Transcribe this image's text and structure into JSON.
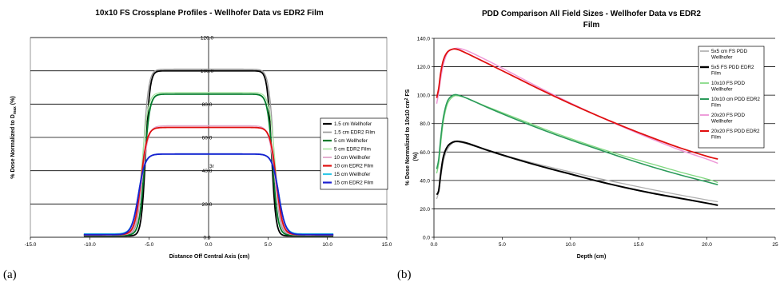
{
  "panels": [
    "(a)",
    "(b)"
  ],
  "chart_data": [
    {
      "type": "line",
      "title": "10x10 FS Crossplane Profiles - Wellhofer Data vs EDR2 Film",
      "xlabel": "Distance Off Central Axis (cm)",
      "ylabel": "% Dose Normalized to D",
      "ylabel_sub": "max",
      "ylabel_tail": " (%)",
      "xlim": [
        -15,
        15
      ],
      "ylim": [
        0,
        120
      ],
      "x_ticks": [
        "-15.0",
        "-10.0",
        "-5.0",
        "0.0",
        "5.0",
        "10.0",
        "15.0"
      ],
      "y_ticks": [
        "0.0",
        "20.0",
        "40.0",
        "60.0",
        "80.0",
        "100.0",
        "120.0"
      ],
      "y_axis_at_zero": true,
      "gridlines_y": true,
      "legend_position": "right",
      "annotation": "3r",
      "series": [
        {
          "name": "1.5 cm Wellhofer",
          "color": "#000000",
          "width": 1.8,
          "plateau": 100,
          "tail": 0.8,
          "edge": 5.3,
          "soft": 0.18
        },
        {
          "name": "1.5 cm EDR2 Film",
          "color": "#9a9a9a",
          "width": 1.3,
          "plateau": 101,
          "tail": 1.5,
          "edge": 5.5,
          "soft": 0.22
        },
        {
          "name": "5 cm Wellhofer",
          "color": "#007a2a",
          "width": 1.8,
          "plateau": 86,
          "tail": 1.2,
          "edge": 5.4,
          "soft": 0.22
        },
        {
          "name": "5 cm EDR2 Film",
          "color": "#a8e6a0",
          "width": 1.3,
          "plateau": 87,
          "tail": 1.8,
          "edge": 5.6,
          "soft": 0.25
        },
        {
          "name": "10 cm Wellhofer",
          "color": "#e0a0c8",
          "width": 1.3,
          "plateau": 67,
          "tail": 1.3,
          "edge": 5.6,
          "soft": 0.26
        },
        {
          "name": "10 cm EDR2 Film",
          "color": "#e01010",
          "width": 1.8,
          "plateau": 66,
          "tail": 1.6,
          "edge": 5.7,
          "soft": 0.26
        },
        {
          "name": "15 cm Wellhofer",
          "color": "#30c8e8",
          "width": 1.8,
          "plateau": 50,
          "tail": 2.0,
          "edge": 5.9,
          "soft": 0.28
        },
        {
          "name": "15 cm EDR2 Film",
          "color": "#1a20d0",
          "width": 1.8,
          "plateau": 50,
          "tail": 1.6,
          "edge": 5.9,
          "soft": 0.28
        }
      ]
    },
    {
      "type": "line",
      "title": "PDD Comparison All Field Sizes - Wellhofer Data vs EDR2",
      "title_line2": "Film",
      "xlabel": "Depth (cm)",
      "ylabel": "% Dose Normalized to 10x10 cm",
      "ylabel_sup": "2",
      "ylabel_tail": " FS",
      "ylabel_line2": "(%)",
      "xlim": [
        0,
        25
      ],
      "ylim": [
        0,
        140
      ],
      "x_ticks": [
        "0.0",
        "5.0",
        "10.0",
        "15.0",
        "20.0",
        "25"
      ],
      "y_ticks": [
        "0.0",
        "20.0",
        "40.0",
        "60.0",
        "80.0",
        "100.0",
        "120.0",
        "140.0"
      ],
      "gridlines_y": true,
      "legend_position": "right",
      "series": [
        {
          "name": "5x5 cm FS PDD Wellhofer",
          "color": "#b0b0b0",
          "width": 1.3,
          "x": [
            0.2,
            0.35,
            0.5,
            0.7,
            1.0,
            1.4,
            1.8,
            2.5,
            4,
            6,
            8,
            10,
            12,
            14,
            16,
            18,
            20,
            20.8
          ],
          "y": [
            27,
            32,
            42,
            54,
            62,
            66.5,
            67,
            65.5,
            61,
            55.5,
            50.5,
            46,
            41.5,
            37.5,
            33.5,
            29.8,
            26.3,
            25
          ]
        },
        {
          "name": "5x5 FS PDD EDR2 Film",
          "color": "#000000",
          "width": 2.0,
          "x": [
            0.2,
            0.35,
            0.5,
            0.7,
            1.0,
            1.4,
            1.8,
            2.5,
            4,
            6,
            8,
            10,
            12,
            14,
            16,
            18,
            20,
            20.8
          ],
          "y": [
            30,
            33,
            45,
            57,
            64,
            67,
            67.5,
            66,
            61,
            55,
            49.5,
            44.5,
            39.5,
            35,
            31,
            27.5,
            24,
            22.5
          ]
        },
        {
          "name": "10x10 FS PDD Wellhofer",
          "color": "#80d880",
          "width": 1.3,
          "x": [
            0.2,
            0.35,
            0.5,
            0.7,
            1.0,
            1.4,
            1.8,
            2.5,
            4,
            6,
            8,
            10,
            12,
            14,
            16,
            18,
            20,
            20.8
          ],
          "y": [
            45,
            52,
            66,
            82,
            94,
            99,
            99.5,
            97.5,
            91.5,
            84,
            76.5,
            69.5,
            63,
            57,
            51.5,
            46,
            41,
            38.5
          ]
        },
        {
          "name": "10x10 cm PDD EDR2 Film",
          "color": "#2a9a5a",
          "width": 1.6,
          "x": [
            0.2,
            0.35,
            0.5,
            0.7,
            1.0,
            1.4,
            1.8,
            2.5,
            4,
            6,
            8,
            10,
            12,
            14,
            16,
            18,
            20,
            20.8
          ],
          "y": [
            48,
            55,
            70,
            85,
            96,
            100,
            100,
            97.5,
            91,
            83,
            75.5,
            68.5,
            62,
            55.5,
            49.5,
            44,
            39,
            37
          ]
        },
        {
          "name": "20x20 FS PDD Wellhofer",
          "color": "#ee99d8",
          "width": 1.5,
          "x": [
            0.2,
            0.35,
            0.5,
            0.7,
            1.0,
            1.4,
            1.8,
            2.5,
            4,
            6,
            8,
            10,
            12,
            14,
            16,
            18,
            20,
            20.8
          ],
          "y": [
            94,
            102,
            112,
            122,
            130,
            132.5,
            133,
            131,
            124,
            114,
            104,
            94.5,
            85.5,
            77,
            69,
            61.5,
            55,
            52
          ]
        },
        {
          "name": "20x20 FS PDD EDR2 Film",
          "color": "#e01010",
          "width": 1.8,
          "x": [
            0.2,
            0.35,
            0.5,
            0.7,
            1.0,
            1.4,
            1.8,
            2.5,
            4,
            6,
            8,
            10,
            12,
            14,
            16,
            18,
            20,
            20.8
          ],
          "y": [
            98,
            105,
            116,
            125,
            130.5,
            132.5,
            132,
            129,
            122,
            112.5,
            103,
            94,
            85.5,
            77.5,
            70,
            63,
            57,
            55
          ]
        }
      ]
    }
  ]
}
